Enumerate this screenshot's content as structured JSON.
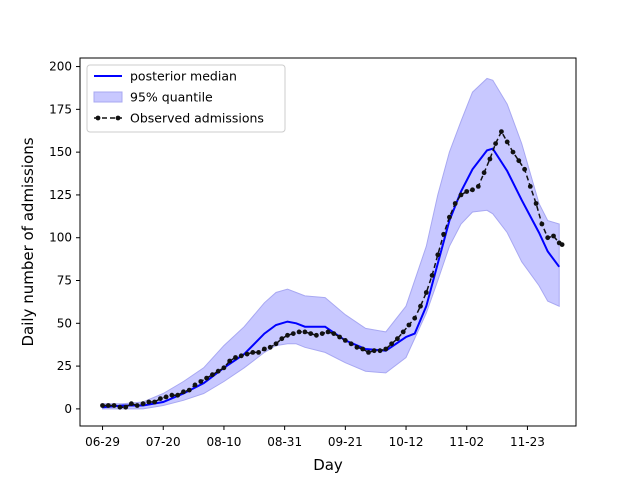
{
  "chart_data": {
    "type": "line",
    "title": "",
    "xlabel": "Day",
    "ylabel": "Daily number of admissions",
    "x_unit": "day",
    "x_start": "06-29",
    "x_ticks": [
      {
        "day": 0,
        "label": "06-29"
      },
      {
        "day": 21,
        "label": "07-20"
      },
      {
        "day": 42,
        "label": "08-10"
      },
      {
        "day": 63,
        "label": "08-31"
      },
      {
        "day": 84,
        "label": "09-21"
      },
      {
        "day": 105,
        "label": "10-12"
      },
      {
        "day": 126,
        "label": "11-02"
      },
      {
        "day": 147,
        "label": "11-23"
      }
    ],
    "xlim": [
      -7.8,
      163.8
    ],
    "ylim": [
      -10,
      205
    ],
    "y_ticks": [
      0,
      25,
      50,
      75,
      100,
      125,
      150,
      175,
      200
    ],
    "grid": false,
    "legend_position": "top-left",
    "legend": [
      {
        "label": "posterior median",
        "kind": "line"
      },
      {
        "label": "95% quantile",
        "kind": "band"
      },
      {
        "label": "Observed admissions",
        "kind": "marker-line"
      }
    ],
    "colors": {
      "median": "#0000ff",
      "band_fill": "#c8c8ff",
      "band_edge": "#a8a8f2",
      "observed": "#111111"
    },
    "series": [
      {
        "name": "posterior median",
        "kind": "line",
        "points": [
          [
            0,
            1
          ],
          [
            7,
            2
          ],
          [
            14,
            2
          ],
          [
            21,
            4
          ],
          [
            28,
            9
          ],
          [
            35,
            15
          ],
          [
            42,
            24
          ],
          [
            49,
            32
          ],
          [
            56,
            44
          ],
          [
            60,
            49
          ],
          [
            64,
            51
          ],
          [
            67,
            50
          ],
          [
            70,
            48
          ],
          [
            77,
            48
          ],
          [
            84,
            40
          ],
          [
            91,
            35
          ],
          [
            98,
            34
          ],
          [
            105,
            42
          ],
          [
            108,
            44
          ],
          [
            112,
            60
          ],
          [
            116,
            85
          ],
          [
            120,
            110
          ],
          [
            124,
            127
          ],
          [
            128,
            140
          ],
          [
            133,
            151
          ],
          [
            135,
            152
          ],
          [
            140,
            139
          ],
          [
            145,
            122
          ],
          [
            151,
            103
          ],
          [
            154,
            92
          ],
          [
            158,
            83
          ]
        ]
      },
      {
        "name": "95% quantile",
        "kind": "band",
        "x": [
          0,
          7,
          14,
          21,
          28,
          35,
          42,
          49,
          56,
          60,
          64,
          67,
          70,
          77,
          84,
          91,
          98,
          105,
          112,
          116,
          120,
          124,
          128,
          133,
          135,
          140,
          145,
          151,
          154,
          158
        ],
        "upper": [
          3,
          3,
          4,
          9,
          16,
          24,
          37,
          48,
          62,
          68,
          70,
          68,
          66,
          65,
          55,
          47,
          45,
          60,
          95,
          125,
          150,
          168,
          185,
          193,
          192,
          178,
          155,
          120,
          110,
          108
        ],
        "lower": [
          0,
          0,
          0,
          2,
          5,
          9,
          16,
          24,
          33,
          37,
          38,
          38,
          36,
          33,
          27,
          22,
          21,
          30,
          56,
          75,
          95,
          108,
          115,
          116,
          114,
          103,
          86,
          72,
          63,
          60
        ]
      },
      {
        "name": "Observed admissions",
        "kind": "marker-line",
        "points": [
          [
            0,
            2
          ],
          [
            2,
            2
          ],
          [
            4,
            2
          ],
          [
            6,
            1
          ],
          [
            8,
            1
          ],
          [
            10,
            3
          ],
          [
            12,
            2
          ],
          [
            14,
            3
          ],
          [
            16,
            4
          ],
          [
            18,
            4
          ],
          [
            20,
            6
          ],
          [
            22,
            7
          ],
          [
            24,
            8
          ],
          [
            26,
            8
          ],
          [
            28,
            10
          ],
          [
            30,
            11
          ],
          [
            32,
            14
          ],
          [
            34,
            16
          ],
          [
            36,
            18
          ],
          [
            38,
            20
          ],
          [
            40,
            22
          ],
          [
            42,
            24
          ],
          [
            44,
            28
          ],
          [
            46,
            30
          ],
          [
            48,
            31
          ],
          [
            50,
            32
          ],
          [
            52,
            33
          ],
          [
            54,
            33
          ],
          [
            56,
            35
          ],
          [
            58,
            36
          ],
          [
            60,
            38
          ],
          [
            62,
            41
          ],
          [
            64,
            43
          ],
          [
            66,
            44
          ],
          [
            68,
            45
          ],
          [
            70,
            45
          ],
          [
            72,
            44
          ],
          [
            74,
            43
          ],
          [
            76,
            44
          ],
          [
            78,
            45
          ],
          [
            80,
            44
          ],
          [
            82,
            42
          ],
          [
            84,
            40
          ],
          [
            86,
            38
          ],
          [
            88,
            36
          ],
          [
            90,
            35
          ],
          [
            92,
            33
          ],
          [
            94,
            34
          ],
          [
            96,
            34
          ],
          [
            98,
            35
          ],
          [
            100,
            38
          ],
          [
            102,
            41
          ],
          [
            104,
            45
          ],
          [
            106,
            49
          ],
          [
            108,
            53
          ],
          [
            110,
            60
          ],
          [
            112,
            68
          ],
          [
            114,
            78
          ],
          [
            116,
            90
          ],
          [
            118,
            102
          ],
          [
            120,
            112
          ],
          [
            122,
            120
          ],
          [
            124,
            125
          ],
          [
            126,
            127
          ],
          [
            128,
            128
          ],
          [
            130,
            130
          ],
          [
            132,
            138
          ],
          [
            134,
            146
          ],
          [
            136,
            155
          ],
          [
            138,
            162
          ],
          [
            140,
            156
          ],
          [
            142,
            150
          ],
          [
            144,
            145
          ],
          [
            146,
            140
          ],
          [
            148,
            130
          ],
          [
            150,
            120
          ],
          [
            152,
            108
          ],
          [
            154,
            100
          ],
          [
            156,
            101
          ],
          [
            158,
            97
          ],
          [
            159,
            96
          ]
        ]
      }
    ]
  }
}
